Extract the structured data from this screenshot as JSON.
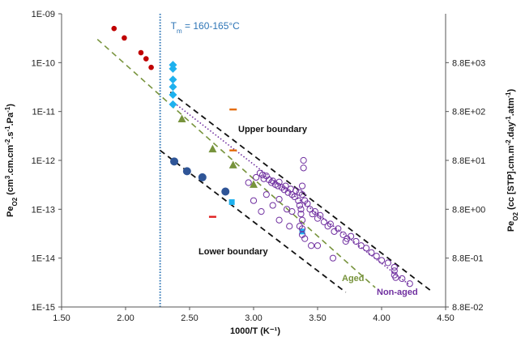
{
  "chart_data": {
    "type": "scatter",
    "title": "",
    "xlabel": "1000/T (K⁻¹)",
    "ylabel_left_parts": [
      "Pe",
      "O2",
      " (cm",
      "3",
      ".cm.cm",
      "-2",
      ".s",
      "-1",
      ".Pa",
      "-1",
      ")"
    ],
    "ylabel_right_parts": [
      "Pe",
      "O2",
      " (cc [STP].cm.m",
      "-2",
      ".day",
      "-1",
      ".atm",
      "-1",
      ")"
    ],
    "xlim": [
      1.5,
      4.5
    ],
    "ylim_log10": [
      -15,
      -9
    ],
    "log_y": true,
    "grid": false,
    "x_ticks": [
      "1.50",
      "2.00",
      "2.50",
      "3.00",
      "3.50",
      "4.00",
      "4.50"
    ],
    "y_ticks_left": [
      "1E-09",
      "1E-10",
      "1E-11",
      "1E-12",
      "1E-13",
      "1E-14",
      "1E-15"
    ],
    "y_ticks_right": [
      "8.8E+03",
      "8.8E+02",
      "8.8E+01",
      "8.8E+00",
      "8.8E-01",
      "8.8E-02"
    ],
    "annotations": {
      "tm_label_main": "T",
      "tm_label_sub": "m",
      "tm_label_rest": " = 160-165°C",
      "tm_x": 2.27,
      "upper_boundary": "Upper boundary",
      "lower_boundary": "Lower boundary",
      "aged": "Aged",
      "non_aged": "Non-aged"
    },
    "colors": {
      "darkred": "#c00000",
      "cyan": "#1eb1ee",
      "olive": "#77933c",
      "navy": "#2f5597",
      "purple": "#7030a0",
      "orange": "#e46c0a",
      "red": "#e02020",
      "tm_line": "#2e75b6",
      "boundary": "#111111"
    },
    "lines": [
      {
        "name": "upper-boundary",
        "style": "dashed",
        "color": "boundary",
        "x": [
          2.35,
          4.38
        ],
        "y": [
          2.5e-11,
          2.2e-15
        ]
      },
      {
        "name": "lower-boundary",
        "style": "dashed",
        "color": "boundary",
        "x": [
          2.27,
          3.72
        ],
        "y": [
          1.6e-12,
          2e-15
        ]
      },
      {
        "name": "aged-fit",
        "style": "dashed",
        "color": "olive",
        "x": [
          1.78,
          3.95
        ],
        "y": [
          3e-10,
          2.5e-15
        ]
      },
      {
        "name": "non-aged-fit",
        "style": "dotted",
        "color": "purple",
        "x": [
          2.38,
          4.22
        ],
        "y": [
          1.5e-11,
          2.8e-15
        ]
      }
    ],
    "series": [
      {
        "marker": "circle-small",
        "color": "darkred",
        "x": [
          1.91,
          1.99,
          2.12,
          2.16,
          2.2
        ],
        "y": [
          5e-10,
          3.2e-10,
          1.6e-10,
          1.2e-10,
          8e-11
        ]
      },
      {
        "marker": "diamond",
        "color": "cyan",
        "x": [
          2.37,
          2.37,
          2.37,
          2.37,
          2.37,
          2.37
        ],
        "y": [
          9e-11,
          7.5e-11,
          4.5e-11,
          3.2e-11,
          2.2e-11,
          1.4e-11
        ]
      },
      {
        "marker": "triangle",
        "color": "olive",
        "x": [
          2.44,
          2.68,
          2.84,
          3.0
        ],
        "y": [
          7e-12,
          1.7e-12,
          8e-13,
          3.2e-13
        ]
      },
      {
        "marker": "circle-filled",
        "color": "navy",
        "x": [
          2.38,
          2.48,
          2.6,
          2.78
        ],
        "y": [
          9.5e-13,
          6e-13,
          4.5e-13,
          2.3e-13
        ]
      },
      {
        "marker": "dash",
        "color": "orange",
        "x": [
          2.84,
          2.84
        ],
        "y": [
          1.1e-11,
          1.6e-12
        ]
      },
      {
        "marker": "dash",
        "color": "red",
        "x": [
          2.68
        ],
        "y": [
          7e-14
        ]
      },
      {
        "marker": "square",
        "color": "cyan",
        "x": [
          2.83,
          3.38
        ],
        "y": [
          1.4e-13,
          3.5e-14
        ]
      },
      {
        "marker": "circle-open",
        "color": "purple",
        "x": [
          2.96,
          3.02,
          3.05,
          3.07,
          3.08,
          3.1,
          3.12,
          3.14,
          3.15,
          3.17,
          3.19,
          3.2,
          3.22,
          3.24,
          3.25,
          3.27,
          3.29,
          3.3,
          3.32,
          3.33,
          3.35,
          3.36,
          3.36,
          3.37,
          3.37,
          3.38,
          3.38,
          3.39,
          3.4,
          3.42,
          3.44,
          3.46,
          3.48,
          3.5,
          3.52,
          3.55,
          3.58,
          3.6,
          3.63,
          3.66,
          3.7,
          3.73,
          3.76,
          3.8,
          3.84,
          3.88,
          3.92,
          3.96,
          4.0,
          4.05,
          4.1,
          4.1,
          4.1,
          4.11,
          4.16,
          4.22,
          3.1,
          3.2,
          3.3,
          3.4,
          3.5,
          3.2,
          3.28,
          3.38,
          3.38,
          3.38,
          3.0,
          3.06,
          3.15,
          3.26,
          3.36,
          3.39,
          3.45,
          3.62,
          3.72
        ],
        "y": [
          3.5e-13,
          4.5e-13,
          5.5e-13,
          5e-13,
          4.2e-13,
          4.8e-13,
          4e-13,
          3.5e-13,
          3.8e-13,
          3.2e-13,
          3e-13,
          3.6e-13,
          2.8e-13,
          2.5e-13,
          3e-13,
          2.2e-13,
          2.6e-13,
          2e-13,
          1.8e-13,
          2.4e-13,
          1.5e-13,
          2.2e-13,
          1.2e-13,
          1e-13,
          8e-14,
          6e-14,
          3e-13,
          7e-13,
          1.5e-13,
          1.3e-13,
          1e-13,
          8e-14,
          9e-14,
          6.5e-14,
          7.5e-14,
          5.5e-14,
          4.5e-14,
          5e-14,
          3.5e-14,
          4e-14,
          3e-14,
          2.5e-14,
          2.8e-14,
          2.2e-14,
          1.8e-14,
          1.6e-14,
          1.3e-14,
          1.1e-14,
          9e-15,
          8e-15,
          6.5e-15,
          5.5e-15,
          4.5e-15,
          4e-15,
          3.8e-15,
          3e-15,
          2e-13,
          1.6e-13,
          9e-14,
          2.5e-14,
          1.8e-14,
          6e-14,
          4.5e-14,
          4e-14,
          2e-13,
          3e-14,
          1.5e-13,
          9e-14,
          1.2e-13,
          1e-13,
          4.5e-14,
          1e-12,
          1.8e-14,
          1e-14,
          2.2e-14
        ]
      }
    ]
  }
}
